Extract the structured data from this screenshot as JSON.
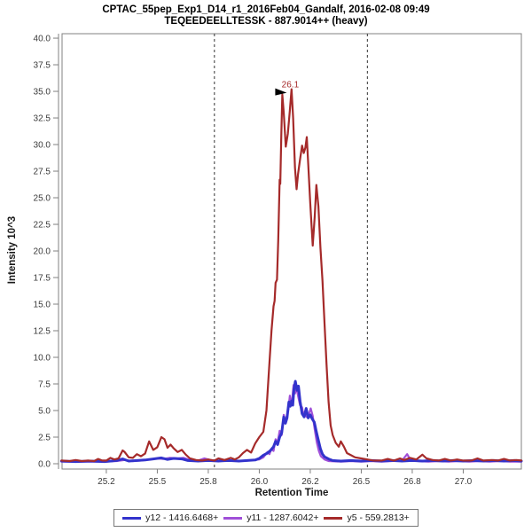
{
  "chart_data": {
    "type": "line",
    "title": "CPTAC_55pep_Exp1_D14_r1_2016Feb04_Gandalf, 2016-02-08 09:49",
    "subtitle": "TEQEEDEELLTESSK - 887.9014++ (heavy)",
    "xlabel": "Retention Time",
    "ylabel": "Intensity 10^3",
    "xlim": [
      25.033,
      27.285
    ],
    "ylim": [
      -0.5,
      40.42
    ],
    "grid": false,
    "legend_position": "bottom",
    "x_ticks": {
      "values": [
        25.25,
        25.5,
        25.75,
        26.0,
        26.25,
        26.5,
        26.75,
        27.0
      ],
      "labels": [
        "25.2",
        "25.5",
        "25.8",
        "26.0",
        "26.2",
        "26.5",
        "26.8",
        "27.0"
      ]
    },
    "y_ticks": {
      "values": [
        0,
        2.5,
        5,
        7.5,
        10,
        12.5,
        15,
        17.5,
        20,
        22.5,
        25,
        27.5,
        30,
        32.5,
        35,
        37.5,
        40
      ],
      "labels": [
        "0.0",
        "2.5",
        "5.0",
        "7.5",
        "10.0",
        "12.5",
        "15.0",
        "17.5",
        "20.0",
        "22.5",
        "25.0",
        "27.5",
        "30.0",
        "32.5",
        "35.0",
        "37.5",
        "40.0"
      ]
    },
    "boundary_lines": [
      25.78,
      26.53
    ],
    "boundary_color": "#333333",
    "peak_annotation": {
      "label": "26.1",
      "x": 26.113,
      "y": 34.7,
      "color": "#A52A2A",
      "marker_color": "#000000"
    },
    "series": [
      {
        "name": "y12 - 1416.6468+",
        "color": "#3333CC",
        "width": 3,
        "draw_index": 1,
        "points": [
          [
            25.03,
            0.25
          ],
          [
            25.1,
            0.2
          ],
          [
            25.17,
            0.25
          ],
          [
            25.24,
            0.2
          ],
          [
            25.3,
            0.3
          ],
          [
            25.33,
            0.45
          ],
          [
            25.36,
            0.25
          ],
          [
            25.4,
            0.3
          ],
          [
            25.44,
            0.35
          ],
          [
            25.48,
            0.45
          ],
          [
            25.52,
            0.55
          ],
          [
            25.55,
            0.4
          ],
          [
            25.58,
            0.5
          ],
          [
            25.62,
            0.45
          ],
          [
            25.65,
            0.3
          ],
          [
            25.7,
            0.25
          ],
          [
            25.75,
            0.3
          ],
          [
            25.8,
            0.25
          ],
          [
            25.85,
            0.3
          ],
          [
            25.9,
            0.25
          ],
          [
            25.94,
            0.3
          ],
          [
            25.98,
            0.35
          ],
          [
            26.0,
            0.5
          ],
          [
            26.02,
            0.8
          ],
          [
            26.04,
            1.0
          ],
          [
            26.055,
            1.25
          ],
          [
            26.07,
            1.6
          ],
          [
            26.08,
            2.1
          ],
          [
            26.09,
            1.8
          ],
          [
            26.1,
            2.5
          ],
          [
            26.11,
            2.9
          ],
          [
            26.12,
            4.4
          ],
          [
            26.128,
            3.8
          ],
          [
            26.136,
            4.3
          ],
          [
            26.145,
            5.8
          ],
          [
            26.152,
            5.4
          ],
          [
            26.158,
            5.9
          ],
          [
            26.164,
            5.5
          ],
          [
            26.17,
            7.0
          ],
          [
            26.177,
            7.75
          ],
          [
            26.185,
            6.9
          ],
          [
            26.192,
            7.3
          ],
          [
            26.2,
            5.9
          ],
          [
            26.21,
            4.7
          ],
          [
            26.22,
            4.4
          ],
          [
            26.23,
            5.2
          ],
          [
            26.24,
            4.3
          ],
          [
            26.25,
            4.6
          ],
          [
            26.26,
            4.2
          ],
          [
            26.27,
            3.9
          ],
          [
            26.28,
            3.0
          ],
          [
            26.29,
            2.2
          ],
          [
            26.3,
            1.4
          ],
          [
            26.31,
            0.9
          ],
          [
            26.32,
            0.65
          ],
          [
            26.34,
            0.45
          ],
          [
            26.36,
            0.3
          ],
          [
            26.4,
            0.25
          ],
          [
            26.45,
            0.3
          ],
          [
            26.5,
            0.25
          ],
          [
            26.55,
            0.3
          ],
          [
            26.6,
            0.25
          ],
          [
            26.65,
            0.3
          ],
          [
            26.7,
            0.25
          ],
          [
            26.75,
            0.3
          ],
          [
            26.8,
            0.25
          ],
          [
            26.85,
            0.3
          ],
          [
            26.9,
            0.25
          ],
          [
            26.95,
            0.3
          ],
          [
            27.0,
            0.25
          ],
          [
            27.05,
            0.3
          ],
          [
            27.1,
            0.25
          ],
          [
            27.15,
            0.3
          ],
          [
            27.2,
            0.25
          ],
          [
            27.25,
            0.3
          ],
          [
            27.285,
            0.25
          ]
        ]
      },
      {
        "name": "y11 - 1287.6042+",
        "color": "#A04FD8",
        "width": 2.2,
        "draw_index": 0,
        "points": [
          [
            25.03,
            0.2
          ],
          [
            25.1,
            0.2
          ],
          [
            25.17,
            0.2
          ],
          [
            25.24,
            0.2
          ],
          [
            25.3,
            0.25
          ],
          [
            25.34,
            0.35
          ],
          [
            25.38,
            0.25
          ],
          [
            25.42,
            0.3
          ],
          [
            25.46,
            0.4
          ],
          [
            25.5,
            0.5
          ],
          [
            25.53,
            0.45
          ],
          [
            25.56,
            0.55
          ],
          [
            25.6,
            0.5
          ],
          [
            25.63,
            0.55
          ],
          [
            25.66,
            0.35
          ],
          [
            25.7,
            0.3
          ],
          [
            25.73,
            0.5
          ],
          [
            25.76,
            0.35
          ],
          [
            25.8,
            0.25
          ],
          [
            25.85,
            0.3
          ],
          [
            25.9,
            0.25
          ],
          [
            25.95,
            0.3
          ],
          [
            26.0,
            0.4
          ],
          [
            26.02,
            0.6
          ],
          [
            26.04,
            1.1
          ],
          [
            26.05,
            0.9
          ],
          [
            26.06,
            1.4
          ],
          [
            26.07,
            1.2
          ],
          [
            26.08,
            2.3
          ],
          [
            26.09,
            2.0
          ],
          [
            26.1,
            3.1
          ],
          [
            26.11,
            2.7
          ],
          [
            26.12,
            4.6
          ],
          [
            26.127,
            4.0
          ],
          [
            26.135,
            4.5
          ],
          [
            26.143,
            5.2
          ],
          [
            26.15,
            6.4
          ],
          [
            26.156,
            5.6
          ],
          [
            26.162,
            6.2
          ],
          [
            26.168,
            7.4
          ],
          [
            26.175,
            6.6
          ],
          [
            26.182,
            7.2
          ],
          [
            26.19,
            6.4
          ],
          [
            26.2,
            5.5
          ],
          [
            26.21,
            5.3
          ],
          [
            26.216,
            4.6
          ],
          [
            26.224,
            4.9
          ],
          [
            26.232,
            4.4
          ],
          [
            26.242,
            4.6
          ],
          [
            26.252,
            5.2
          ],
          [
            26.262,
            4.5
          ],
          [
            26.272,
            3.2
          ],
          [
            26.282,
            2.0
          ],
          [
            26.292,
            1.2
          ],
          [
            26.302,
            0.7
          ],
          [
            26.32,
            0.4
          ],
          [
            26.34,
            0.25
          ],
          [
            26.4,
            0.2
          ],
          [
            26.45,
            0.25
          ],
          [
            26.5,
            0.2
          ],
          [
            26.55,
            0.25
          ],
          [
            26.6,
            0.2
          ],
          [
            26.65,
            0.25
          ],
          [
            26.7,
            0.3
          ],
          [
            26.725,
            0.9
          ],
          [
            26.74,
            0.4
          ],
          [
            26.78,
            0.25
          ],
          [
            26.83,
            0.2
          ],
          [
            26.88,
            0.25
          ],
          [
            26.93,
            0.2
          ],
          [
            26.98,
            0.25
          ],
          [
            27.03,
            0.2
          ],
          [
            27.08,
            0.25
          ],
          [
            27.13,
            0.2
          ],
          [
            27.18,
            0.25
          ],
          [
            27.23,
            0.2
          ],
          [
            27.285,
            0.2
          ]
        ]
      },
      {
        "name": "y5 - 559.2813+",
        "color": "#A52A2A",
        "width": 2.2,
        "draw_index": 2,
        "points": [
          [
            25.03,
            0.3
          ],
          [
            25.07,
            0.25
          ],
          [
            25.1,
            0.35
          ],
          [
            25.13,
            0.25
          ],
          [
            25.16,
            0.3
          ],
          [
            25.19,
            0.25
          ],
          [
            25.21,
            0.45
          ],
          [
            25.23,
            0.3
          ],
          [
            25.25,
            0.3
          ],
          [
            25.27,
            0.55
          ],
          [
            25.29,
            0.4
          ],
          [
            25.31,
            0.5
          ],
          [
            25.33,
            1.25
          ],
          [
            25.34,
            1.1
          ],
          [
            25.36,
            0.6
          ],
          [
            25.38,
            0.55
          ],
          [
            25.4,
            0.9
          ],
          [
            25.42,
            0.7
          ],
          [
            25.44,
            0.95
          ],
          [
            25.46,
            2.1
          ],
          [
            25.48,
            1.3
          ],
          [
            25.5,
            1.55
          ],
          [
            25.52,
            2.5
          ],
          [
            25.535,
            2.3
          ],
          [
            25.55,
            1.5
          ],
          [
            25.565,
            1.8
          ],
          [
            25.58,
            1.45
          ],
          [
            25.6,
            1.1
          ],
          [
            25.62,
            1.3
          ],
          [
            25.64,
            0.85
          ],
          [
            25.66,
            0.5
          ],
          [
            25.69,
            0.35
          ],
          [
            25.72,
            0.3
          ],
          [
            25.75,
            0.4
          ],
          [
            25.78,
            0.3
          ],
          [
            25.8,
            0.5
          ],
          [
            25.83,
            0.35
          ],
          [
            25.86,
            0.55
          ],
          [
            25.88,
            0.4
          ],
          [
            25.9,
            0.6
          ],
          [
            25.92,
            1.0
          ],
          [
            25.94,
            1.3
          ],
          [
            25.96,
            1.05
          ],
          [
            25.98,
            1.9
          ],
          [
            26.0,
            2.5
          ],
          [
            26.02,
            3.0
          ],
          [
            26.035,
            5.0
          ],
          [
            26.05,
            9.5
          ],
          [
            26.06,
            12.5
          ],
          [
            26.07,
            14.8
          ],
          [
            26.075,
            15.3
          ],
          [
            26.08,
            17.0
          ],
          [
            26.087,
            17.3
          ],
          [
            26.093,
            21.0
          ],
          [
            26.1,
            26.7
          ],
          [
            26.103,
            26.3
          ],
          [
            26.108,
            31.0
          ],
          [
            26.113,
            34.7
          ],
          [
            26.12,
            33.0
          ],
          [
            26.13,
            29.8
          ],
          [
            26.14,
            31.0
          ],
          [
            26.15,
            33.2
          ],
          [
            26.158,
            35.2
          ],
          [
            26.166,
            32.5
          ],
          [
            26.175,
            27.8
          ],
          [
            26.183,
            25.8
          ],
          [
            26.19,
            27.2
          ],
          [
            26.2,
            28.6
          ],
          [
            26.21,
            29.9
          ],
          [
            26.218,
            29.2
          ],
          [
            26.226,
            29.7
          ],
          [
            26.233,
            30.7
          ],
          [
            26.24,
            28.2
          ],
          [
            26.25,
            24.5
          ],
          [
            26.262,
            20.5
          ],
          [
            26.272,
            23.3
          ],
          [
            26.28,
            26.2
          ],
          [
            26.29,
            24.2
          ],
          [
            26.3,
            20.3
          ],
          [
            26.31,
            17.2
          ],
          [
            26.32,
            13.2
          ],
          [
            26.33,
            9.3
          ],
          [
            26.34,
            5.8
          ],
          [
            26.35,
            3.6
          ],
          [
            26.36,
            2.7
          ],
          [
            26.375,
            1.95
          ],
          [
            26.39,
            1.6
          ],
          [
            26.4,
            2.1
          ],
          [
            26.415,
            1.6
          ],
          [
            26.43,
            1.0
          ],
          [
            26.45,
            0.8
          ],
          [
            26.47,
            0.6
          ],
          [
            26.5,
            0.5
          ],
          [
            26.53,
            0.4
          ],
          [
            26.56,
            0.3
          ],
          [
            26.6,
            0.3
          ],
          [
            26.63,
            0.45
          ],
          [
            26.66,
            0.3
          ],
          [
            26.69,
            0.5
          ],
          [
            26.71,
            0.35
          ],
          [
            26.74,
            0.55
          ],
          [
            26.77,
            0.4
          ],
          [
            26.8,
            0.85
          ],
          [
            26.82,
            0.5
          ],
          [
            26.85,
            0.35
          ],
          [
            26.88,
            0.3
          ],
          [
            26.91,
            0.45
          ],
          [
            26.94,
            0.3
          ],
          [
            26.97,
            0.4
          ],
          [
            27.0,
            0.3
          ],
          [
            27.04,
            0.3
          ],
          [
            27.07,
            0.5
          ],
          [
            27.1,
            0.3
          ],
          [
            27.14,
            0.35
          ],
          [
            27.17,
            0.3
          ],
          [
            27.2,
            0.45
          ],
          [
            27.23,
            0.3
          ],
          [
            27.26,
            0.35
          ],
          [
            27.285,
            0.3
          ]
        ]
      }
    ]
  }
}
